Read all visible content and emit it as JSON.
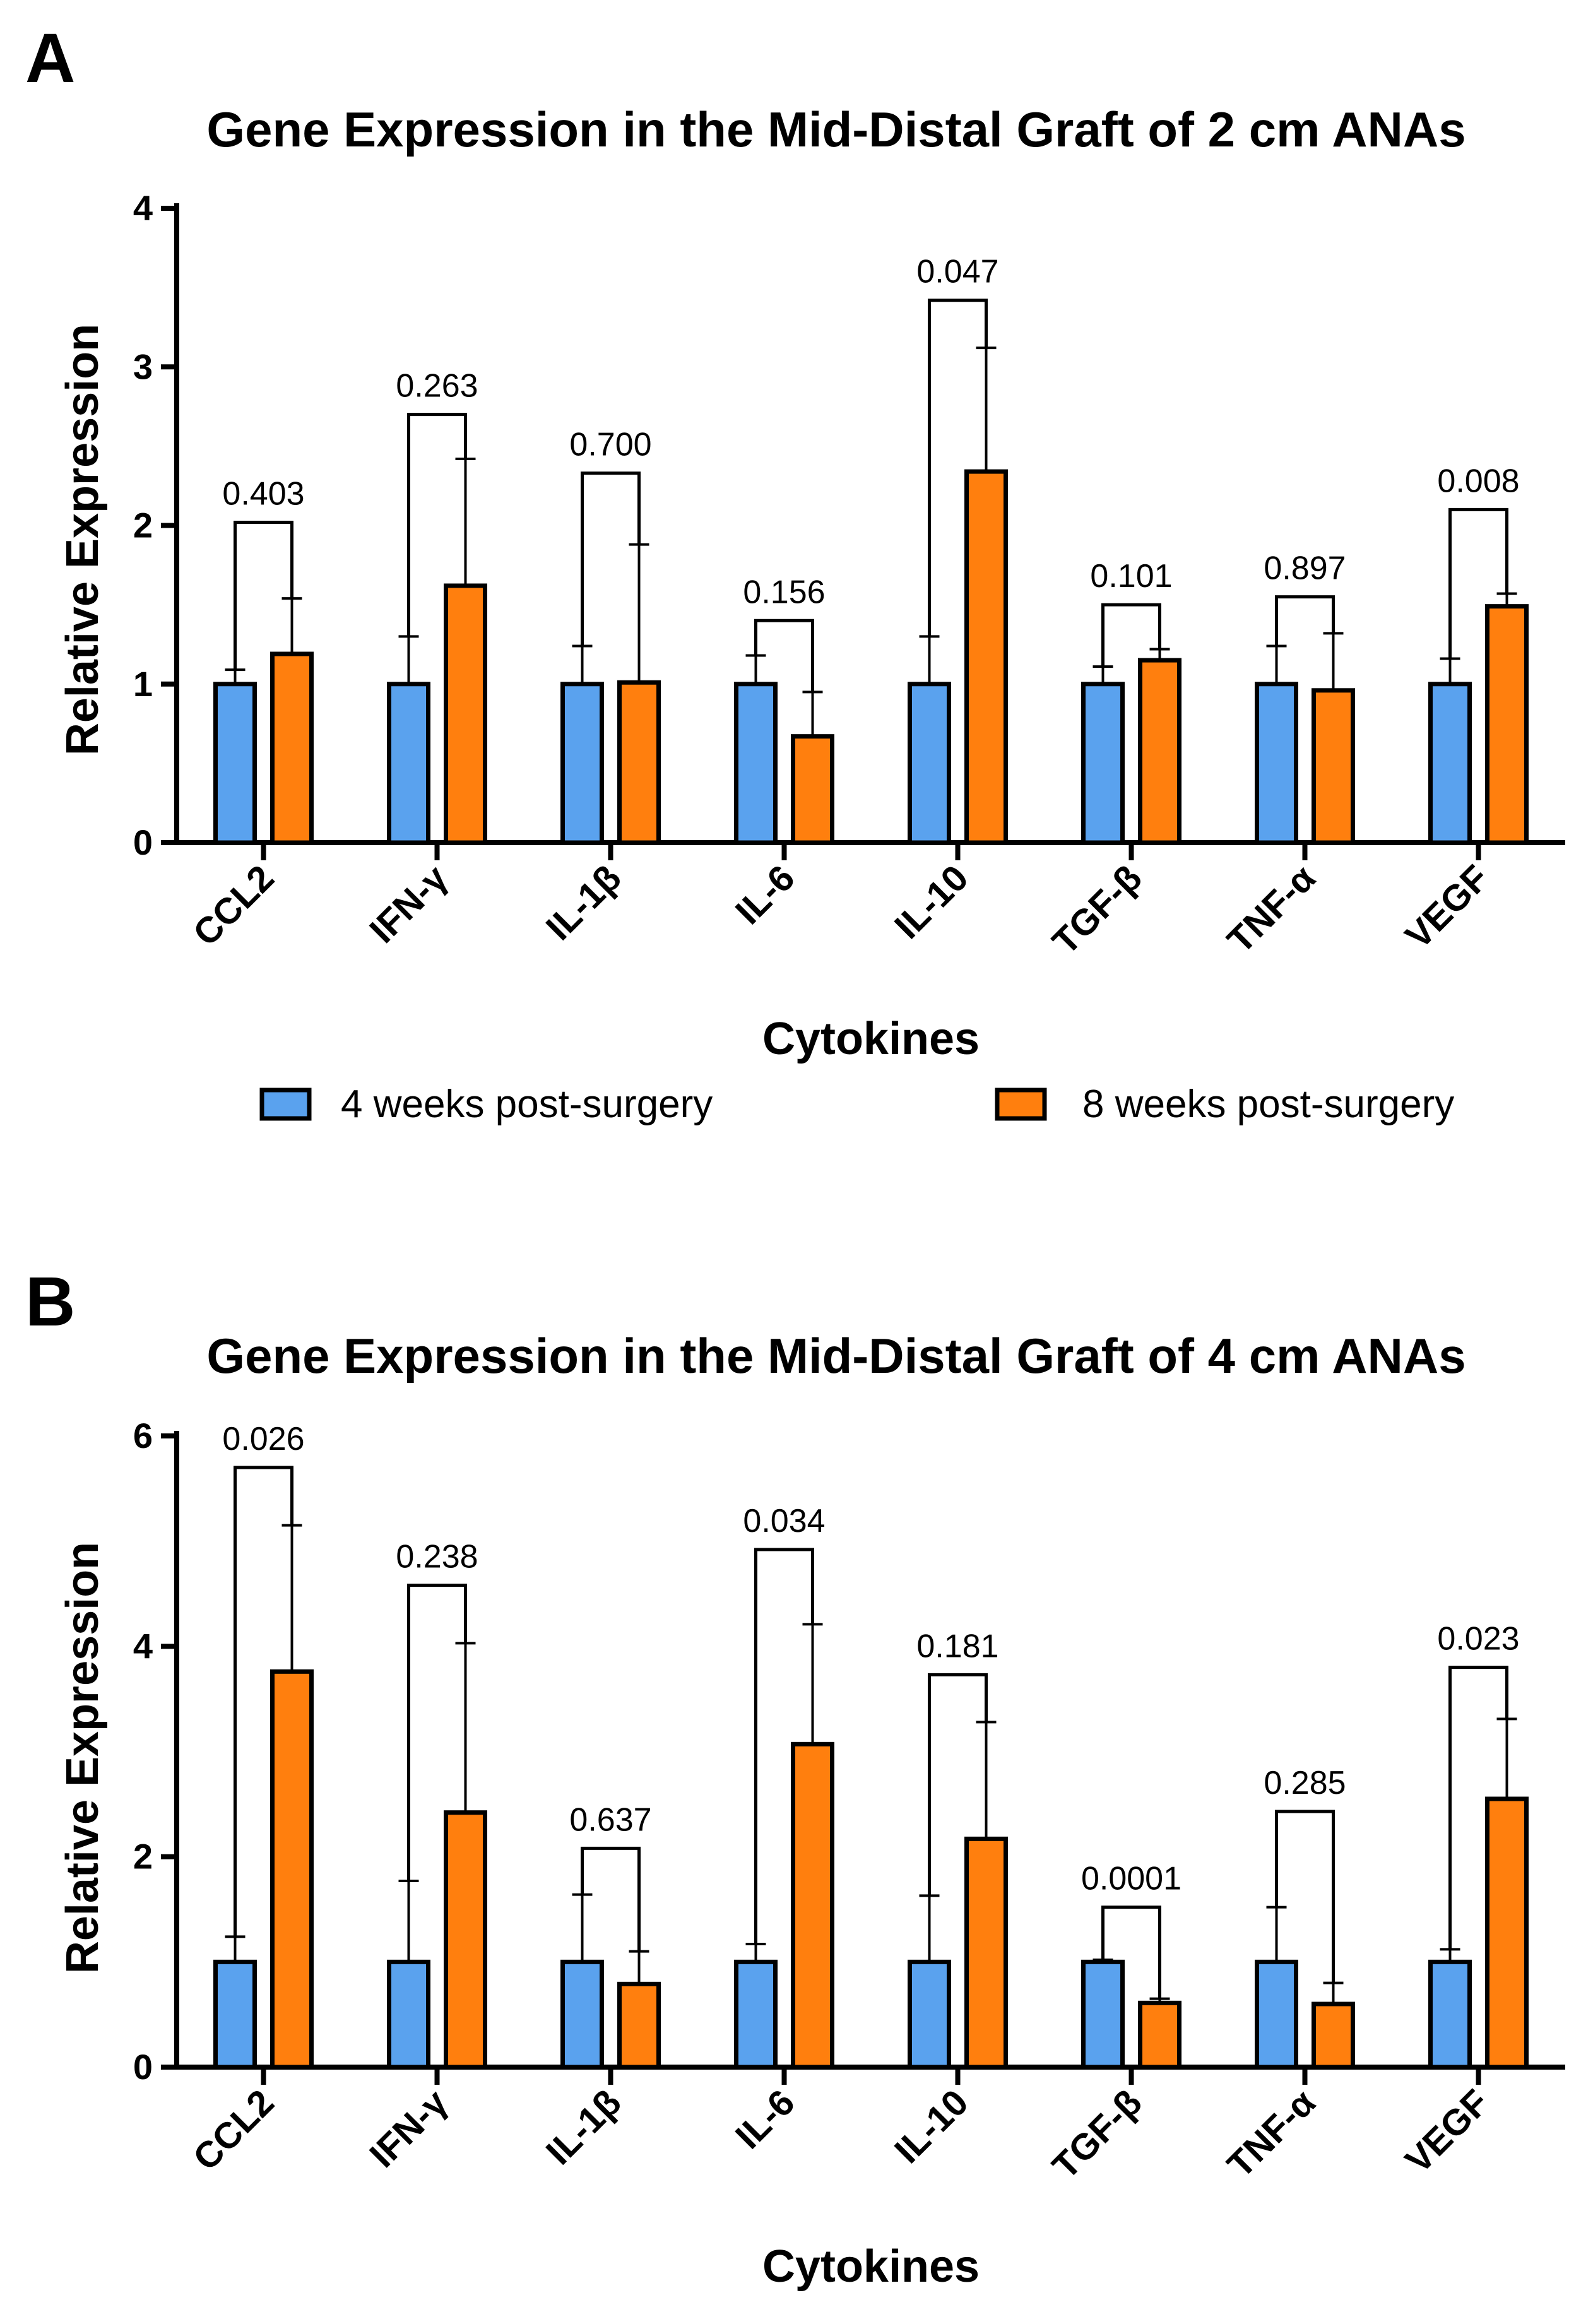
{
  "colors": {
    "s1": "#5aa2ee",
    "s2": "#ff7f0e",
    "stroke": "#000000"
  },
  "legend": {
    "s1": "4 weeks post-surgery",
    "s2": "8 weeks post-surgery"
  },
  "chart_data": [
    {
      "panel": "A",
      "type": "bar",
      "title": "Gene Expression in the Mid-Distal Graft of 2 cm ANAs",
      "xlabel": "Cytokines",
      "ylabel": "Relative Expression",
      "ylim": [
        0,
        4
      ],
      "yticks": [
        0,
        1,
        2,
        3,
        4
      ],
      "categories": [
        "CCL2",
        "IFN-γ",
        "IL-1β",
        "IL-6",
        "IL-10",
        "TGF-β",
        "TNF-α",
        "VEGF"
      ],
      "series": [
        {
          "name": "4 weeks post-surgery",
          "values": [
            1.0,
            1.0,
            1.0,
            1.0,
            1.0,
            1.0,
            1.0,
            1.0
          ],
          "errors": [
            0.09,
            0.3,
            0.24,
            0.18,
            0.3,
            0.11,
            0.24,
            0.16
          ]
        },
        {
          "name": "8 weeks post-surgery",
          "values": [
            1.19,
            1.62,
            1.01,
            0.67,
            2.34,
            1.15,
            0.96,
            1.49
          ],
          "errors": [
            0.35,
            0.8,
            0.87,
            0.28,
            0.78,
            0.07,
            0.36,
            0.08
          ]
        }
      ],
      "pvalues": [
        "0.403",
        "0.263",
        "0.700",
        "0.156",
        "0.047",
        "0.101",
        "0.897",
        "0.008"
      ],
      "bracket_tops": [
        2.02,
        2.7,
        2.33,
        1.4,
        3.42,
        1.5,
        1.55,
        2.1
      ]
    },
    {
      "panel": "B",
      "type": "bar",
      "title": "Gene Expression in the Mid-Distal Graft of 4 cm ANAs",
      "xlabel": "Cytokines",
      "ylabel": "Relative Expression",
      "ylim": [
        0,
        6
      ],
      "yticks": [
        0,
        2,
        4,
        6
      ],
      "categories": [
        "CCL2",
        "IFN-γ",
        "IL-1β",
        "IL-6",
        "IL-10",
        "TGF-β",
        "TNF-α",
        "VEGF"
      ],
      "series": [
        {
          "name": "4 weeks post-surgery",
          "values": [
            1.0,
            1.0,
            1.0,
            1.0,
            1.0,
            1.0,
            1.0,
            1.0
          ],
          "errors": [
            0.24,
            0.77,
            0.64,
            0.17,
            0.63,
            0.02,
            0.52,
            0.12
          ]
        },
        {
          "name": "8 weeks post-surgery",
          "values": [
            3.76,
            2.42,
            0.79,
            3.07,
            2.17,
            0.61,
            0.6,
            2.55
          ],
          "errors": [
            1.39,
            1.61,
            0.31,
            1.14,
            1.11,
            0.04,
            0.2,
            0.76
          ]
        }
      ],
      "pvalues": [
        "0.026",
        "0.238",
        "0.637",
        "0.034",
        "0.181",
        "0.0001",
        "0.285",
        "0.023"
      ],
      "bracket_tops": [
        5.7,
        4.58,
        2.08,
        4.92,
        3.73,
        1.52,
        2.43,
        3.8
      ]
    }
  ]
}
